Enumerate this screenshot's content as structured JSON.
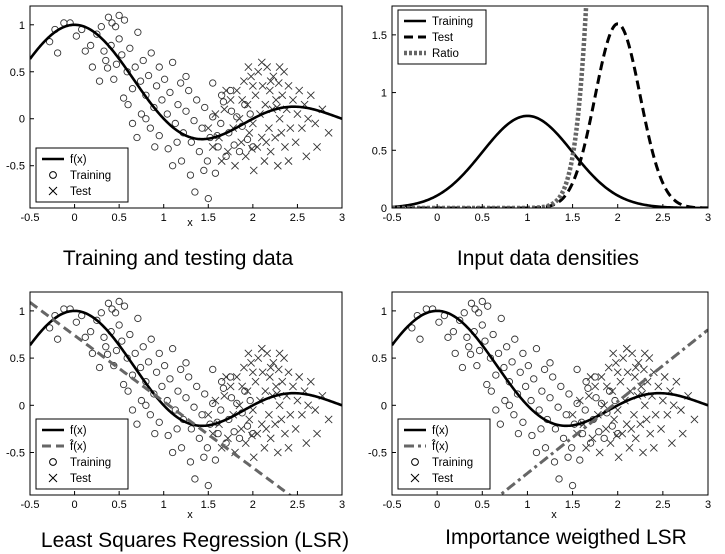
{
  "chart_data": [
    {
      "type": "scatter",
      "caption": "Training and testing data",
      "xlabel": "x",
      "xlim": [
        -0.5,
        3
      ],
      "ylim": [
        -0.95,
        1.2
      ],
      "xticks": [
        "-0.5",
        "0",
        "0.5",
        "1",
        "1.5",
        "2",
        "2.5",
        "3"
      ],
      "yticks": [
        "-0.5",
        "0",
        "0.5",
        "1"
      ],
      "legend_position": "bottom-left",
      "curves": [
        {
          "name": "f(x)",
          "function": "sinc",
          "style": "solid",
          "color": "#000000"
        }
      ],
      "training_series": "Training",
      "test_series": "Test"
    },
    {
      "type": "line",
      "caption": "Input data densities",
      "xlabel": "",
      "xlim": [
        -0.5,
        3
      ],
      "ylim": [
        0,
        1.75
      ],
      "xticks": [
        "-0.5",
        "0",
        "0.5",
        "1",
        "1.5",
        "2",
        "2.5",
        "3"
      ],
      "yticks": [
        "0",
        "0.5",
        "1",
        "1.5"
      ],
      "legend_position": "top-left",
      "series": [
        {
          "name": "Training",
          "distribution": "normal",
          "mean": 1,
          "sd": 0.5,
          "style": "solid",
          "color": "#000000"
        },
        {
          "name": "Test",
          "distribution": "normal",
          "mean": 2,
          "sd": 0.25,
          "style": "dashed",
          "color": "#000000"
        },
        {
          "name": "Ratio",
          "distribution": "ratio Test/Training",
          "style": "dotted",
          "color": "#666666"
        }
      ]
    },
    {
      "type": "scatter",
      "caption": "Least Squares Regression (LSR)",
      "xlabel": "x",
      "xlim": [
        -0.5,
        3
      ],
      "ylim": [
        -0.95,
        1.2
      ],
      "xticks": [
        "-0.5",
        "0",
        "0.5",
        "1",
        "1.5",
        "2",
        "2.5",
        "3"
      ],
      "yticks": [
        "-0.5",
        "0",
        "0.5",
        "1"
      ],
      "legend_position": "bottom-left",
      "curves": [
        {
          "name": "f(x)",
          "function": "sinc",
          "style": "solid",
          "color": "#000000"
        },
        {
          "name": "f̂(x)",
          "function": "linear",
          "intercept": 0.74,
          "slope": -0.7,
          "style": "dashed",
          "color": "#666666"
        }
      ],
      "training_series": "Training",
      "test_series": "Test"
    },
    {
      "type": "scatter",
      "caption": "Importance weigthed LSR",
      "xlabel": "x",
      "xlim": [
        -0.5,
        3
      ],
      "ylim": [
        -0.95,
        1.2
      ],
      "xticks": [
        "-0.5",
        "0",
        "0.5",
        "1",
        "1.5",
        "2",
        "2.5",
        "3"
      ],
      "yticks": [
        "-0.5",
        "0",
        "0.5",
        "1"
      ],
      "legend_position": "bottom-left",
      "curves": [
        {
          "name": "f(x)",
          "function": "sinc",
          "style": "solid",
          "color": "#000000"
        },
        {
          "name": "f̂(x)",
          "function": "linear",
          "intercept": -1.48,
          "slope": 0.76,
          "style": "dashdot",
          "color": "#666666"
        }
      ],
      "training_series": "Training",
      "test_series": "Test"
    }
  ],
  "training_points": [
    [
      -0.28,
      0.82
    ],
    [
      -0.22,
      0.95
    ],
    [
      -0.19,
      0.7
    ],
    [
      -0.12,
      1.02
    ],
    [
      -0.05,
      1.02
    ],
    [
      0.02,
      0.88
    ],
    [
      0.08,
      0.95
    ],
    [
      0.12,
      0.72
    ],
    [
      0.18,
      0.78
    ],
    [
      0.25,
      0.9
    ],
    [
      0.3,
      0.98
    ],
    [
      0.35,
      0.62
    ],
    [
      0.38,
      1.08
    ],
    [
      0.42,
      1.02
    ],
    [
      0.46,
      0.98
    ],
    [
      0.5,
      1.1
    ],
    [
      0.33,
      0.72
    ],
    [
      0.37,
      0.54
    ],
    [
      0.41,
      0.78
    ],
    [
      0.44,
      0.42
    ],
    [
      0.47,
      0.58
    ],
    [
      0.5,
      0.85
    ],
    [
      0.53,
      0.68
    ],
    [
      0.56,
      1.05
    ],
    [
      0.59,
      0.5
    ],
    [
      0.62,
      0.75
    ],
    [
      0.65,
      0.32
    ],
    [
      0.68,
      0.55
    ],
    [
      0.71,
      0.92
    ],
    [
      0.74,
      0.4
    ],
    [
      0.77,
      0.62
    ],
    [
      0.8,
      0.25
    ],
    [
      0.83,
      0.46
    ],
    [
      0.86,
      0.7
    ],
    [
      0.89,
      0.12
    ],
    [
      0.92,
      0.35
    ],
    [
      0.95,
      0.55
    ],
    [
      0.98,
      0.2
    ],
    [
      1.01,
      0.42
    ],
    [
      1.04,
      0.05
    ],
    [
      1.07,
      0.28
    ],
    [
      1.1,
      0.6
    ],
    [
      1.13,
      -0.05
    ],
    [
      1.16,
      0.15
    ],
    [
      1.19,
      0.38
    ],
    [
      1.22,
      -0.15
    ],
    [
      1.25,
      0.08
    ],
    [
      1.28,
      0.3
    ],
    [
      1.31,
      -0.25
    ],
    [
      1.34,
      -0.02
    ],
    [
      1.37,
      0.2
    ],
    [
      1.4,
      -0.35
    ],
    [
      1.43,
      -0.1
    ],
    [
      1.46,
      0.12
    ],
    [
      1.49,
      -0.45
    ],
    [
      1.52,
      -0.2
    ],
    [
      1.55,
      0.02
    ],
    [
      1.58,
      -0.58
    ],
    [
      1.61,
      -0.3
    ],
    [
      1.64,
      -0.05
    ],
    [
      1.67,
      0.18
    ],
    [
      1.7,
      -0.4
    ],
    [
      1.73,
      -0.15
    ],
    [
      1.76,
      0.08
    ],
    [
      1.79,
      -0.28
    ],
    [
      1.82,
      0.02
    ],
    [
      1.85,
      -0.35
    ],
    [
      1.88,
      -0.08
    ],
    [
      1.91,
      0.15
    ],
    [
      1.94,
      -0.22
    ],
    [
      1.97,
      0.05
    ],
    [
      2.0,
      -0.3
    ],
    [
      0.9,
      -0.3
    ],
    [
      0.95,
      -0.18
    ],
    [
      1.05,
      -0.32
    ],
    [
      1.15,
      -0.25
    ],
    [
      1.2,
      -0.45
    ],
    [
      1.3,
      -0.6
    ],
    [
      1.35,
      -0.78
    ],
    [
      1.5,
      -0.85
    ],
    [
      1.1,
      -0.5
    ],
    [
      1.45,
      -0.55
    ],
    [
      0.7,
      -0.2
    ],
    [
      0.6,
      0.15
    ],
    [
      0.75,
      0.05
    ],
    [
      0.85,
      -0.1
    ],
    [
      1.25,
      0.45
    ],
    [
      1.55,
      0.38
    ],
    [
      1.65,
      0.25
    ],
    [
      1.75,
      0.3
    ],
    [
      0.2,
      0.55
    ],
    [
      0.28,
      0.4
    ],
    [
      0.55,
      0.22
    ],
    [
      0.65,
      -0.05
    ],
    [
      0.8,
      0.0
    ],
    [
      1.6,
      -0.18
    ]
  ],
  "test_points": [
    [
      1.5,
      -0.1
    ],
    [
      1.55,
      -0.3
    ],
    [
      1.58,
      0.05
    ],
    [
      1.62,
      -0.2
    ],
    [
      1.65,
      -0.45
    ],
    [
      1.68,
      0.1
    ],
    [
      1.72,
      -0.35
    ],
    [
      1.75,
      0.2
    ],
    [
      1.78,
      -0.1
    ],
    [
      1.8,
      -0.5
    ],
    [
      1.82,
      0.3
    ],
    [
      1.85,
      0.0
    ],
    [
      1.87,
      -0.25
    ],
    [
      1.9,
      0.4
    ],
    [
      1.92,
      -0.4
    ],
    [
      1.94,
      0.15
    ],
    [
      1.96,
      -0.15
    ],
    [
      1.98,
      0.45
    ],
    [
      2.0,
      -0.05
    ],
    [
      2.01,
      -0.55
    ],
    [
      2.03,
      0.25
    ],
    [
      2.05,
      -0.3
    ],
    [
      2.06,
      0.5
    ],
    [
      2.08,
      0.05
    ],
    [
      2.1,
      -0.2
    ],
    [
      2.11,
      0.35
    ],
    [
      2.13,
      -0.45
    ],
    [
      2.14,
      0.15
    ],
    [
      2.16,
      0.55
    ],
    [
      2.18,
      -0.1
    ],
    [
      2.19,
      0.3
    ],
    [
      2.2,
      -0.35
    ],
    [
      2.22,
      0.1
    ],
    [
      2.23,
      0.45
    ],
    [
      2.25,
      -0.2
    ],
    [
      2.26,
      0.2
    ],
    [
      2.28,
      -0.5
    ],
    [
      2.29,
      0.38
    ],
    [
      2.3,
      0.0
    ],
    [
      2.32,
      -0.15
    ],
    [
      2.33,
      0.25
    ],
    [
      2.35,
      0.5
    ],
    [
      2.36,
      -0.3
    ],
    [
      2.38,
      0.1
    ],
    [
      2.4,
      0.35
    ],
    [
      2.42,
      -0.1
    ],
    [
      2.45,
      0.2
    ],
    [
      2.48,
      -0.25
    ],
    [
      2.5,
      0.05
    ],
    [
      2.52,
      0.3
    ],
    [
      2.55,
      -0.1
    ],
    [
      2.58,
      0.15
    ],
    [
      2.6,
      -0.4
    ],
    [
      2.62,
      0.0
    ],
    [
      2.65,
      0.25
    ],
    [
      2.7,
      -0.05
    ],
    [
      2.72,
      -0.3
    ],
    [
      2.78,
      0.1
    ],
    [
      2.85,
      -0.15
    ],
    [
      2.3,
      0.55
    ],
    [
      2.1,
      0.6
    ],
    [
      1.95,
      0.55
    ],
    [
      1.7,
      0.3
    ],
    [
      2.4,
      -0.45
    ],
    [
      2.0,
      0.35
    ],
    [
      2.2,
      0.4
    ],
    [
      1.88,
      0.2
    ],
    [
      2.15,
      -0.25
    ],
    [
      2.27,
      0.12
    ],
    [
      1.99,
      -0.32
    ]
  ]
}
